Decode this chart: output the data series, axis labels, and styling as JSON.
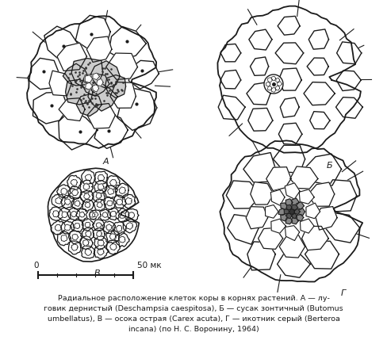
{
  "bg_color": "#ffffff",
  "ink_color": "#1a1a1a",
  "scale_bar_label": "50 мк",
  "label_A": "A",
  "label_B": "Б",
  "label_V": "B",
  "label_G": "Г",
  "figw": 4.88,
  "figh": 4.35,
  "dpi": 100
}
